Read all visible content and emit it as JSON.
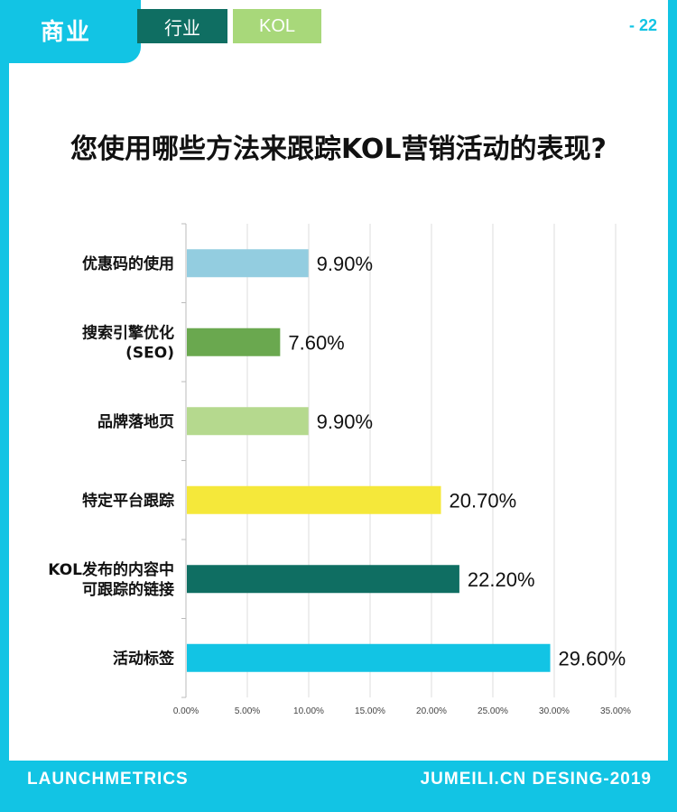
{
  "header": {
    "category_tab": "商业",
    "tabs": [
      {
        "label": "行业"
      },
      {
        "label": "KOL"
      }
    ],
    "page_number": "- 22"
  },
  "title": "您使用哪些方法来跟踪KOL营销活动的表现?",
  "footer": {
    "left": "LAUNCHMETRICS",
    "right": "JUMEILI.CN DESING-2019"
  },
  "colors": {
    "brand": "#12c4e4",
    "tab_dark": "#0f6e62",
    "tab_light": "#a8d87a"
  },
  "chart_data": {
    "type": "bar",
    "orientation": "horizontal",
    "categories": [
      [
        "优惠码的使用"
      ],
      [
        "搜索引擎优化",
        "(SEO)"
      ],
      [
        "品牌落地页"
      ],
      [
        "特定平台跟踪"
      ],
      [
        "KOL发布的内容中",
        "可跟踪的链接"
      ],
      [
        "活动标签"
      ]
    ],
    "values": [
      9.9,
      7.6,
      9.9,
      20.7,
      22.2,
      29.6
    ],
    "value_labels": [
      "9.90%",
      "7.60%",
      "9.90%",
      "20.70%",
      "22.20%",
      "29.60%"
    ],
    "bar_colors": [
      "#93cde0",
      "#6aa84f",
      "#b5d98e",
      "#f5e83a",
      "#0f6e62",
      "#12c4e4"
    ],
    "xlim": [
      0,
      35
    ],
    "xticks": [
      "0.00%",
      "5.00%",
      "10.00%",
      "15.00%",
      "20.00%",
      "25.00%",
      "30.00%",
      "35.00%"
    ],
    "grid": true
  }
}
